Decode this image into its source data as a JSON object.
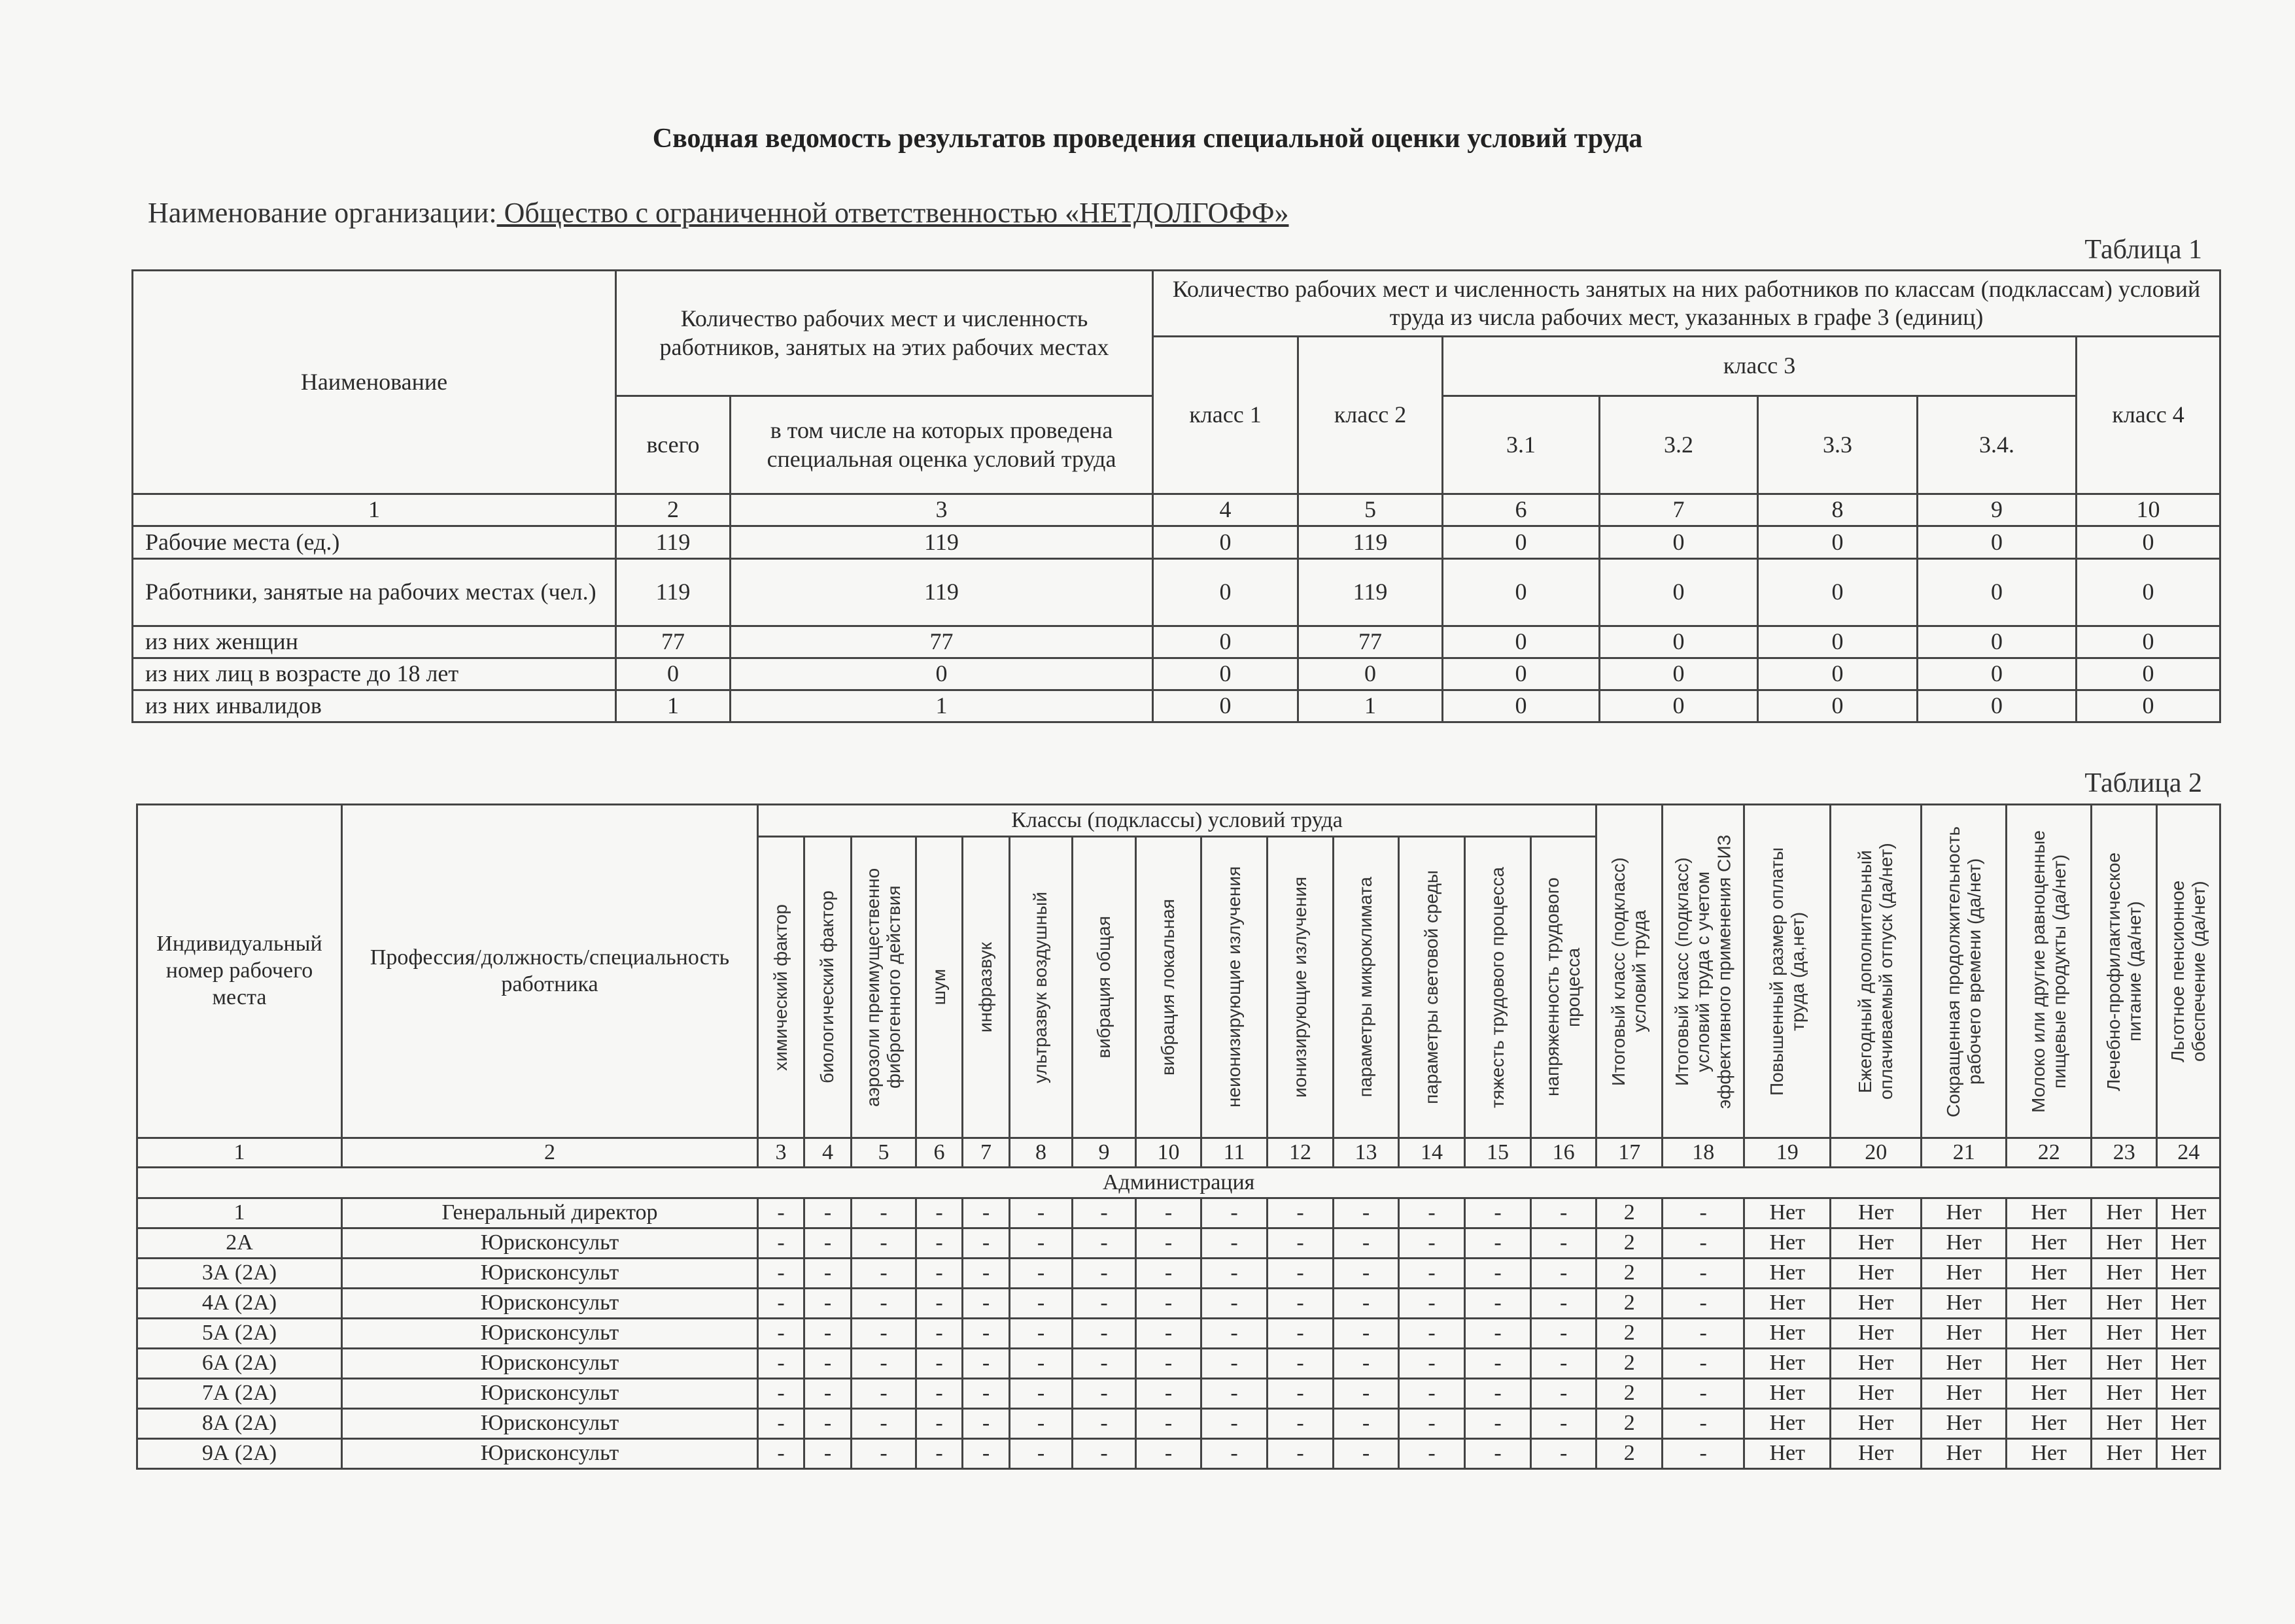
{
  "title": "Сводная ведомость результатов проведения специальной оценки условий труда",
  "organization": {
    "label": "Наименование организации:",
    "value": " Общество с ограниченной ответственностью «НЕТДОЛГОФФ»"
  },
  "table1": {
    "caption": "Таблица 1",
    "headers": {
      "name": "Наименование",
      "count_group": "Количество рабочих мест и численность работников, занятых на этих рабочих местах",
      "total": "всего",
      "assessed": "в том числе на которых проведена специальная оценка условий труда",
      "classes_group": "Количество рабочих мест и численность занятых на них работников по классам (подклассам) условий труда из числа рабочих мест, указанных в графе 3 (единиц)",
      "class1": "класс 1",
      "class2": "класс 2",
      "class3": "класс 3",
      "class4": "класс 4",
      "sub": [
        "3.1",
        "3.2",
        "3.3",
        "3.4."
      ]
    },
    "numbers": [
      "1",
      "2",
      "3",
      "4",
      "5",
      "6",
      "7",
      "8",
      "9",
      "10"
    ],
    "rows": [
      [
        "Рабочие места (ед.)",
        "119",
        "119",
        "0",
        "119",
        "0",
        "0",
        "0",
        "0",
        "0"
      ],
      [
        "Работники, занятые на рабочих местах (чел.)",
        "119",
        "119",
        "0",
        "119",
        "0",
        "0",
        "0",
        "0",
        "0"
      ],
      [
        "из них женщин",
        "77",
        "77",
        "0",
        "77",
        "0",
        "0",
        "0",
        "0",
        "0"
      ],
      [
        "из них лиц в возрасте до 18 лет",
        "0",
        "0",
        "0",
        "0",
        "0",
        "0",
        "0",
        "0",
        "0"
      ],
      [
        "из них инвалидов",
        "1",
        "1",
        "0",
        "1",
        "0",
        "0",
        "0",
        "0",
        "0"
      ]
    ]
  },
  "table2": {
    "caption": "Таблица 2",
    "headers": {
      "id": "Индивидуальный номер рабочего места",
      "profession": "Профессия/должность/специальность работника",
      "classes_group": "Классы (подклассы) условий труда",
      "factors": [
        "химический фактор",
        "биологический фактор",
        "аэрозоли преимущественно фиброгенного действия",
        "шум",
        "инфразвук",
        "ультразвук воздушный",
        "вибрация общая",
        "вибрация локальная",
        "неионизирующие излучения",
        "ионизирующие излучения",
        "параметры микроклимата",
        "параметры световой среды",
        "тяжесть трудового процесса",
        "напряженность трудового процесса"
      ],
      "extra": [
        "Итоговый класс (подкласс) условий труда",
        "Итоговый класс (подкласс) условий труда с учетом эффективного применения СИЗ",
        "Повышенный размер оплаты труда (да,нет)",
        "Ежегодный дополнительный оплачиваемый отпуск (да/нет)",
        "Сокращенная продолжительность рабочего времени (да/нет)",
        "Молоко или другие равноценные пищевые продукты (да/нет)",
        "Лечебно-профилактическое питание (да/нет)",
        "Льготное пенсионное обеспечение (да/нет)"
      ]
    },
    "numbers": [
      "1",
      "2",
      "3",
      "4",
      "5",
      "6",
      "7",
      "8",
      "9",
      "10",
      "11",
      "12",
      "13",
      "14",
      "15",
      "16",
      "17",
      "18",
      "19",
      "20",
      "21",
      "22",
      "23",
      "24"
    ],
    "section": "Администрация",
    "rows": [
      [
        "1",
        "Генеральный директор",
        "-",
        "-",
        "-",
        "-",
        "-",
        "-",
        "-",
        "-",
        "-",
        "-",
        "-",
        "-",
        "-",
        "-",
        "2",
        "-",
        "Нет",
        "Нет",
        "Нет",
        "Нет",
        "Нет",
        "Нет"
      ],
      [
        "2А",
        "Юрисконсульт",
        "-",
        "-",
        "-",
        "-",
        "-",
        "-",
        "-",
        "-",
        "-",
        "-",
        "-",
        "-",
        "-",
        "-",
        "2",
        "-",
        "Нет",
        "Нет",
        "Нет",
        "Нет",
        "Нет",
        "Нет"
      ],
      [
        "3А (2А)",
        "Юрисконсульт",
        "-",
        "-",
        "-",
        "-",
        "-",
        "-",
        "-",
        "-",
        "-",
        "-",
        "-",
        "-",
        "-",
        "-",
        "2",
        "-",
        "Нет",
        "Нет",
        "Нет",
        "Нет",
        "Нет",
        "Нет"
      ],
      [
        "4А (2А)",
        "Юрисконсульт",
        "-",
        "-",
        "-",
        "-",
        "-",
        "-",
        "-",
        "-",
        "-",
        "-",
        "-",
        "-",
        "-",
        "-",
        "2",
        "-",
        "Нет",
        "Нет",
        "Нет",
        "Нет",
        "Нет",
        "Нет"
      ],
      [
        "5А (2А)",
        "Юрисконсульт",
        "-",
        "-",
        "-",
        "-",
        "-",
        "-",
        "-",
        "-",
        "-",
        "-",
        "-",
        "-",
        "-",
        "-",
        "2",
        "-",
        "Нет",
        "Нет",
        "Нет",
        "Нет",
        "Нет",
        "Нет"
      ],
      [
        "6А (2А)",
        "Юрисконсульт",
        "-",
        "-",
        "-",
        "-",
        "-",
        "-",
        "-",
        "-",
        "-",
        "-",
        "-",
        "-",
        "-",
        "-",
        "2",
        "-",
        "Нет",
        "Нет",
        "Нет",
        "Нет",
        "Нет",
        "Нет"
      ],
      [
        "7А (2А)",
        "Юрисконсульт",
        "-",
        "-",
        "-",
        "-",
        "-",
        "-",
        "-",
        "-",
        "-",
        "-",
        "-",
        "-",
        "-",
        "-",
        "2",
        "-",
        "Нет",
        "Нет",
        "Нет",
        "Нет",
        "Нет",
        "Нет"
      ],
      [
        "8А (2А)",
        "Юрисконсульт",
        "-",
        "-",
        "-",
        "-",
        "-",
        "-",
        "-",
        "-",
        "-",
        "-",
        "-",
        "-",
        "-",
        "-",
        "2",
        "-",
        "Нет",
        "Нет",
        "Нет",
        "Нет",
        "Нет",
        "Нет"
      ],
      [
        "9А (2А)",
        "Юрисконсульт",
        "-",
        "-",
        "-",
        "-",
        "-",
        "-",
        "-",
        "-",
        "-",
        "-",
        "-",
        "-",
        "-",
        "-",
        "2",
        "-",
        "Нет",
        "Нет",
        "Нет",
        "Нет",
        "Нет",
        "Нет"
      ]
    ]
  }
}
